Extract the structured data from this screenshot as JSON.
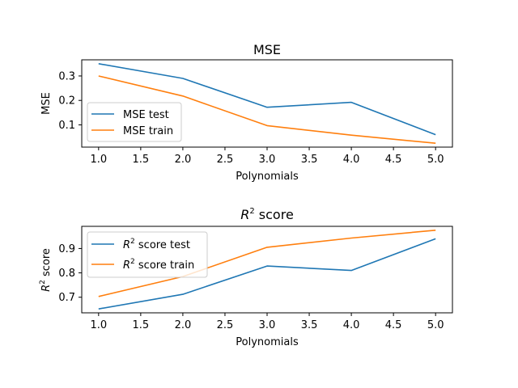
{
  "chart_data": [
    {
      "type": "line",
      "title": "MSE",
      "xlabel": "Polynomials",
      "ylabel": "MSE",
      "x": [
        1.0,
        2.0,
        3.0,
        4.0,
        5.0
      ],
      "series": [
        {
          "name": "MSE test",
          "color": "#1f77b4",
          "values": [
            0.35,
            0.29,
            0.172,
            0.192,
            0.06
          ]
        },
        {
          "name": "MSE train",
          "color": "#ff7f0e",
          "values": [
            0.3,
            0.218,
            0.097,
            0.058,
            0.025
          ]
        }
      ],
      "xlim": [
        0.8,
        5.2
      ],
      "ylim": [
        0.009,
        0.366
      ],
      "xticks": [
        "1.0",
        "1.5",
        "2.0",
        "2.5",
        "3.0",
        "3.5",
        "4.0",
        "4.5",
        "5.0"
      ],
      "yticks": [
        "0.1",
        "0.2",
        "0.3"
      ],
      "legend": "center-left",
      "grid": false
    },
    {
      "type": "line",
      "title_base": "R",
      "title_sup": "2",
      "title_rest": " score",
      "xlabel": "Polynomials",
      "ylabel_base": "R",
      "ylabel_sup": "2",
      "ylabel_rest": " score",
      "x": [
        1.0,
        2.0,
        3.0,
        4.0,
        5.0
      ],
      "series": [
        {
          "name_base": "R",
          "name_sup": "2",
          "name_rest": " score test",
          "color": "#1f77b4",
          "values": [
            0.652,
            0.712,
            0.828,
            0.81,
            0.94
          ]
        },
        {
          "name_base": "R",
          "name_sup": "2",
          "name_rest": " score train",
          "color": "#ff7f0e",
          "values": [
            0.703,
            0.785,
            0.905,
            0.943,
            0.975
          ]
        }
      ],
      "xlim": [
        0.8,
        5.2
      ],
      "ylim": [
        0.636,
        0.991
      ],
      "xticks": [
        "1.0",
        "1.5",
        "2.0",
        "2.5",
        "3.0",
        "3.5",
        "4.0",
        "4.5",
        "5.0"
      ],
      "yticks": [
        "0.7",
        "0.8",
        "0.9"
      ],
      "legend": "upper-left",
      "grid": false
    }
  ]
}
